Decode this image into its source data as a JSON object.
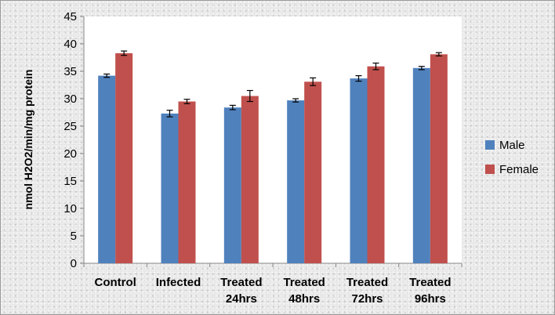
{
  "chart_data": {
    "type": "bar",
    "title": "",
    "xlabel": "",
    "ylabel": "nmol H2O2/min/mg protein",
    "ylim": [
      0,
      45
    ],
    "yticks": [
      0,
      5,
      10,
      15,
      20,
      25,
      30,
      35,
      40,
      45
    ],
    "grid": false,
    "legend_position": "right",
    "categories": [
      [
        "Control"
      ],
      [
        "Infected"
      ],
      [
        "Treated",
        "24hrs"
      ],
      [
        "Treated",
        "48hrs"
      ],
      [
        "Treated",
        "72hrs"
      ],
      [
        "Treated",
        "96hrs"
      ]
    ],
    "series": [
      {
        "name": "Male",
        "color": "#4f81bd",
        "values": [
          34.2,
          27.3,
          28.4,
          29.7,
          33.7,
          35.6
        ],
        "errors": [
          0.3,
          0.6,
          0.4,
          0.3,
          0.5,
          0.3
        ]
      },
      {
        "name": "Female",
        "color": "#c0504d",
        "values": [
          38.3,
          29.5,
          30.5,
          33.1,
          35.9,
          38.1
        ],
        "errors": [
          0.4,
          0.4,
          1.0,
          0.7,
          0.6,
          0.3
        ]
      }
    ]
  }
}
